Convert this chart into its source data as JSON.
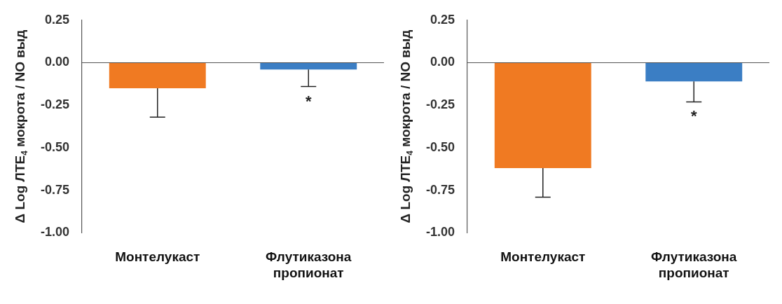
{
  "chart_data": [
    {
      "type": "bar",
      "ylabel": "Δ Log ЛТЕ$_{4}$ мокрота / NO выд",
      "categories": [
        "Монтелукаст",
        "Флутиказона пропионат"
      ],
      "values": [
        -0.15,
        -0.04
      ],
      "colors": [
        "#f07a22",
        "#3b7ec4"
      ],
      "errors": [
        [
          -0.32,
          -0.15
        ],
        [
          -0.14,
          -0.04
        ]
      ],
      "ylim": [
        -1.0,
        0.25
      ],
      "yticks": [
        {
          "value": 0.25,
          "label": "0.25"
        },
        {
          "value": 0,
          "label": "0.00"
        },
        {
          "value": -0.25,
          "label": "-0.25"
        },
        {
          "value": -0.5,
          "label": "-0.50"
        },
        {
          "value": -0.75,
          "label": "-0.75"
        },
        {
          "value": -1,
          "label": "-1.00"
        }
      ],
      "annotations": [
        "*"
      ],
      "legend": false
    },
    {
      "type": "bar",
      "ylabel": "Δ Log ЛТЕ$_{4}$ мокрота / NO выд",
      "categories": [
        "Монтелукаст",
        "Флутиказона пропионат"
      ],
      "values": [
        -0.62,
        -0.11
      ],
      "colors": [
        "#f07a22",
        "#3b7ec4"
      ],
      "errors": [
        [
          -0.79,
          -0.62
        ],
        [
          -0.23,
          -0.11
        ]
      ],
      "ylim": [
        -1.0,
        0.25
      ],
      "yticks": [
        {
          "value": 0.25,
          "label": "0.25"
        },
        {
          "value": 0,
          "label": "0.00"
        },
        {
          "value": -0.25,
          "label": "-0.25"
        },
        {
          "value": -0.5,
          "label": "-0.50"
        },
        {
          "value": -0.75,
          "label": "-0.75"
        },
        {
          "value": -1,
          "label": "-1.00"
        }
      ],
      "annotations": [
        "*"
      ],
      "legend": false
    }
  ]
}
